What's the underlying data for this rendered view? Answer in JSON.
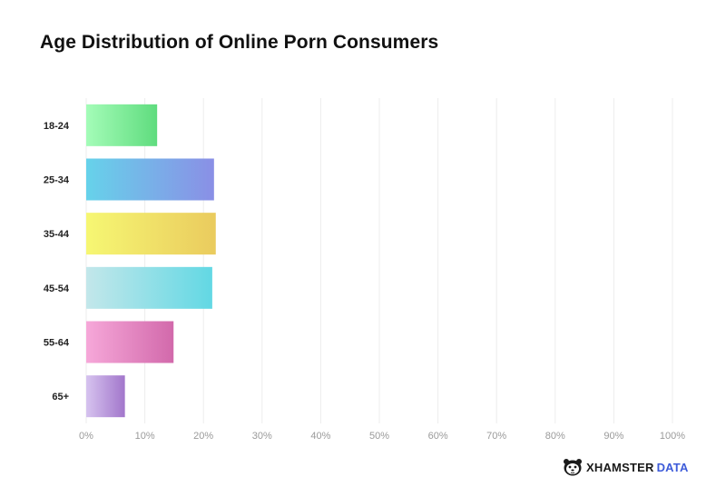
{
  "title": "Age Distribution of Online Porn Consumers",
  "brand": {
    "name": "XHAMSTER",
    "suffix": "DATA",
    "icon": "hamster-face-icon"
  },
  "chart_data": {
    "type": "bar",
    "orientation": "horizontal",
    "title": "Age Distribution of Online Porn Consumers",
    "xlabel": "",
    "ylabel": "",
    "categories": [
      "18-24",
      "25-34",
      "35-44",
      "45-54",
      "55-64",
      "65+"
    ],
    "values": [
      12.1,
      21.8,
      22.1,
      21.5,
      14.9,
      6.6
    ],
    "unit": "%",
    "xlim": [
      0,
      100
    ],
    "xticks": [
      0,
      10,
      20,
      30,
      40,
      50,
      60,
      70,
      80,
      90,
      100
    ],
    "xtick_labels": [
      "0%",
      "10%",
      "20%",
      "30%",
      "40%",
      "50%",
      "60%",
      "70%",
      "80%",
      "90%",
      "100%"
    ],
    "grid": "vertical",
    "legend": "none",
    "bar_gradients": [
      [
        "#a4fcb8",
        "#5fdc7e"
      ],
      [
        "#66d2ea",
        "#8a8fe6"
      ],
      [
        "#f6f773",
        "#eacb5e"
      ],
      [
        "#c3e7ea",
        "#62d8e4"
      ],
      [
        "#f6a8d9",
        "#d269ab"
      ],
      [
        "#d6c3ef",
        "#a276cb"
      ]
    ]
  }
}
